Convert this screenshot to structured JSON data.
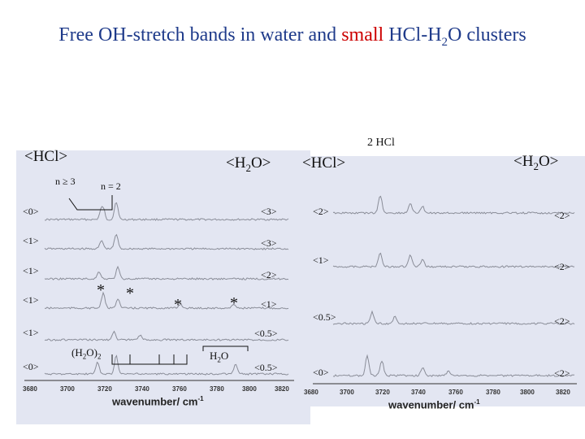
{
  "slide": {
    "title_pre": "Free OH-stretch bands in water and ",
    "title_red": "small",
    "title_post": " HCl-H",
    "title_sub": "2",
    "title_end": "O clusters"
  },
  "left": {
    "header_hcl": "<HCl>",
    "header_h2o_pre": "<H",
    "header_h2o_sub": "2",
    "header_h2o_post": "O>",
    "n_ge3": "n ≥ 3",
    "n_eq2": "n = 2",
    "labels_left": [
      "<0>",
      "<1>",
      "<1>",
      "<1>",
      "<1>",
      "<0>"
    ],
    "labels_right": [
      "<3>",
      "<3>",
      "<2>",
      "<1>",
      "<0.5>",
      "<0.5>"
    ],
    "dimer_pre": "(H",
    "dimer_sub": "2",
    "dimer_post": "O)",
    "dimer_sub2": "2",
    "monomer_pre": "H",
    "monomer_sub": "2",
    "monomer_post": "O",
    "star": "*",
    "xticks": [
      "3680",
      "3700",
      "3720",
      "3740",
      "3760",
      "3780",
      "3800",
      "3820"
    ],
    "xlabel": "wavenumber/ cm",
    "xlabel_sup": "-1"
  },
  "right": {
    "header_2hcl": "2 HCl",
    "header_hcl": "<HCl>",
    "header_h2o_pre": "<H",
    "header_h2o_sub": "2",
    "header_h2o_post": "O>",
    "labels_left": [
      "<2>",
      "<1>",
      "<0.5>",
      "<0>"
    ],
    "labels_right": [
      "<2>",
      "<2>",
      "<2>",
      "<2>"
    ],
    "xticks": [
      "3680",
      "3700",
      "3720",
      "3740",
      "3760",
      "3780",
      "3800",
      "3820"
    ],
    "xlabel": "wavenumber/ cm",
    "xlabel_sup": "-1"
  }
}
